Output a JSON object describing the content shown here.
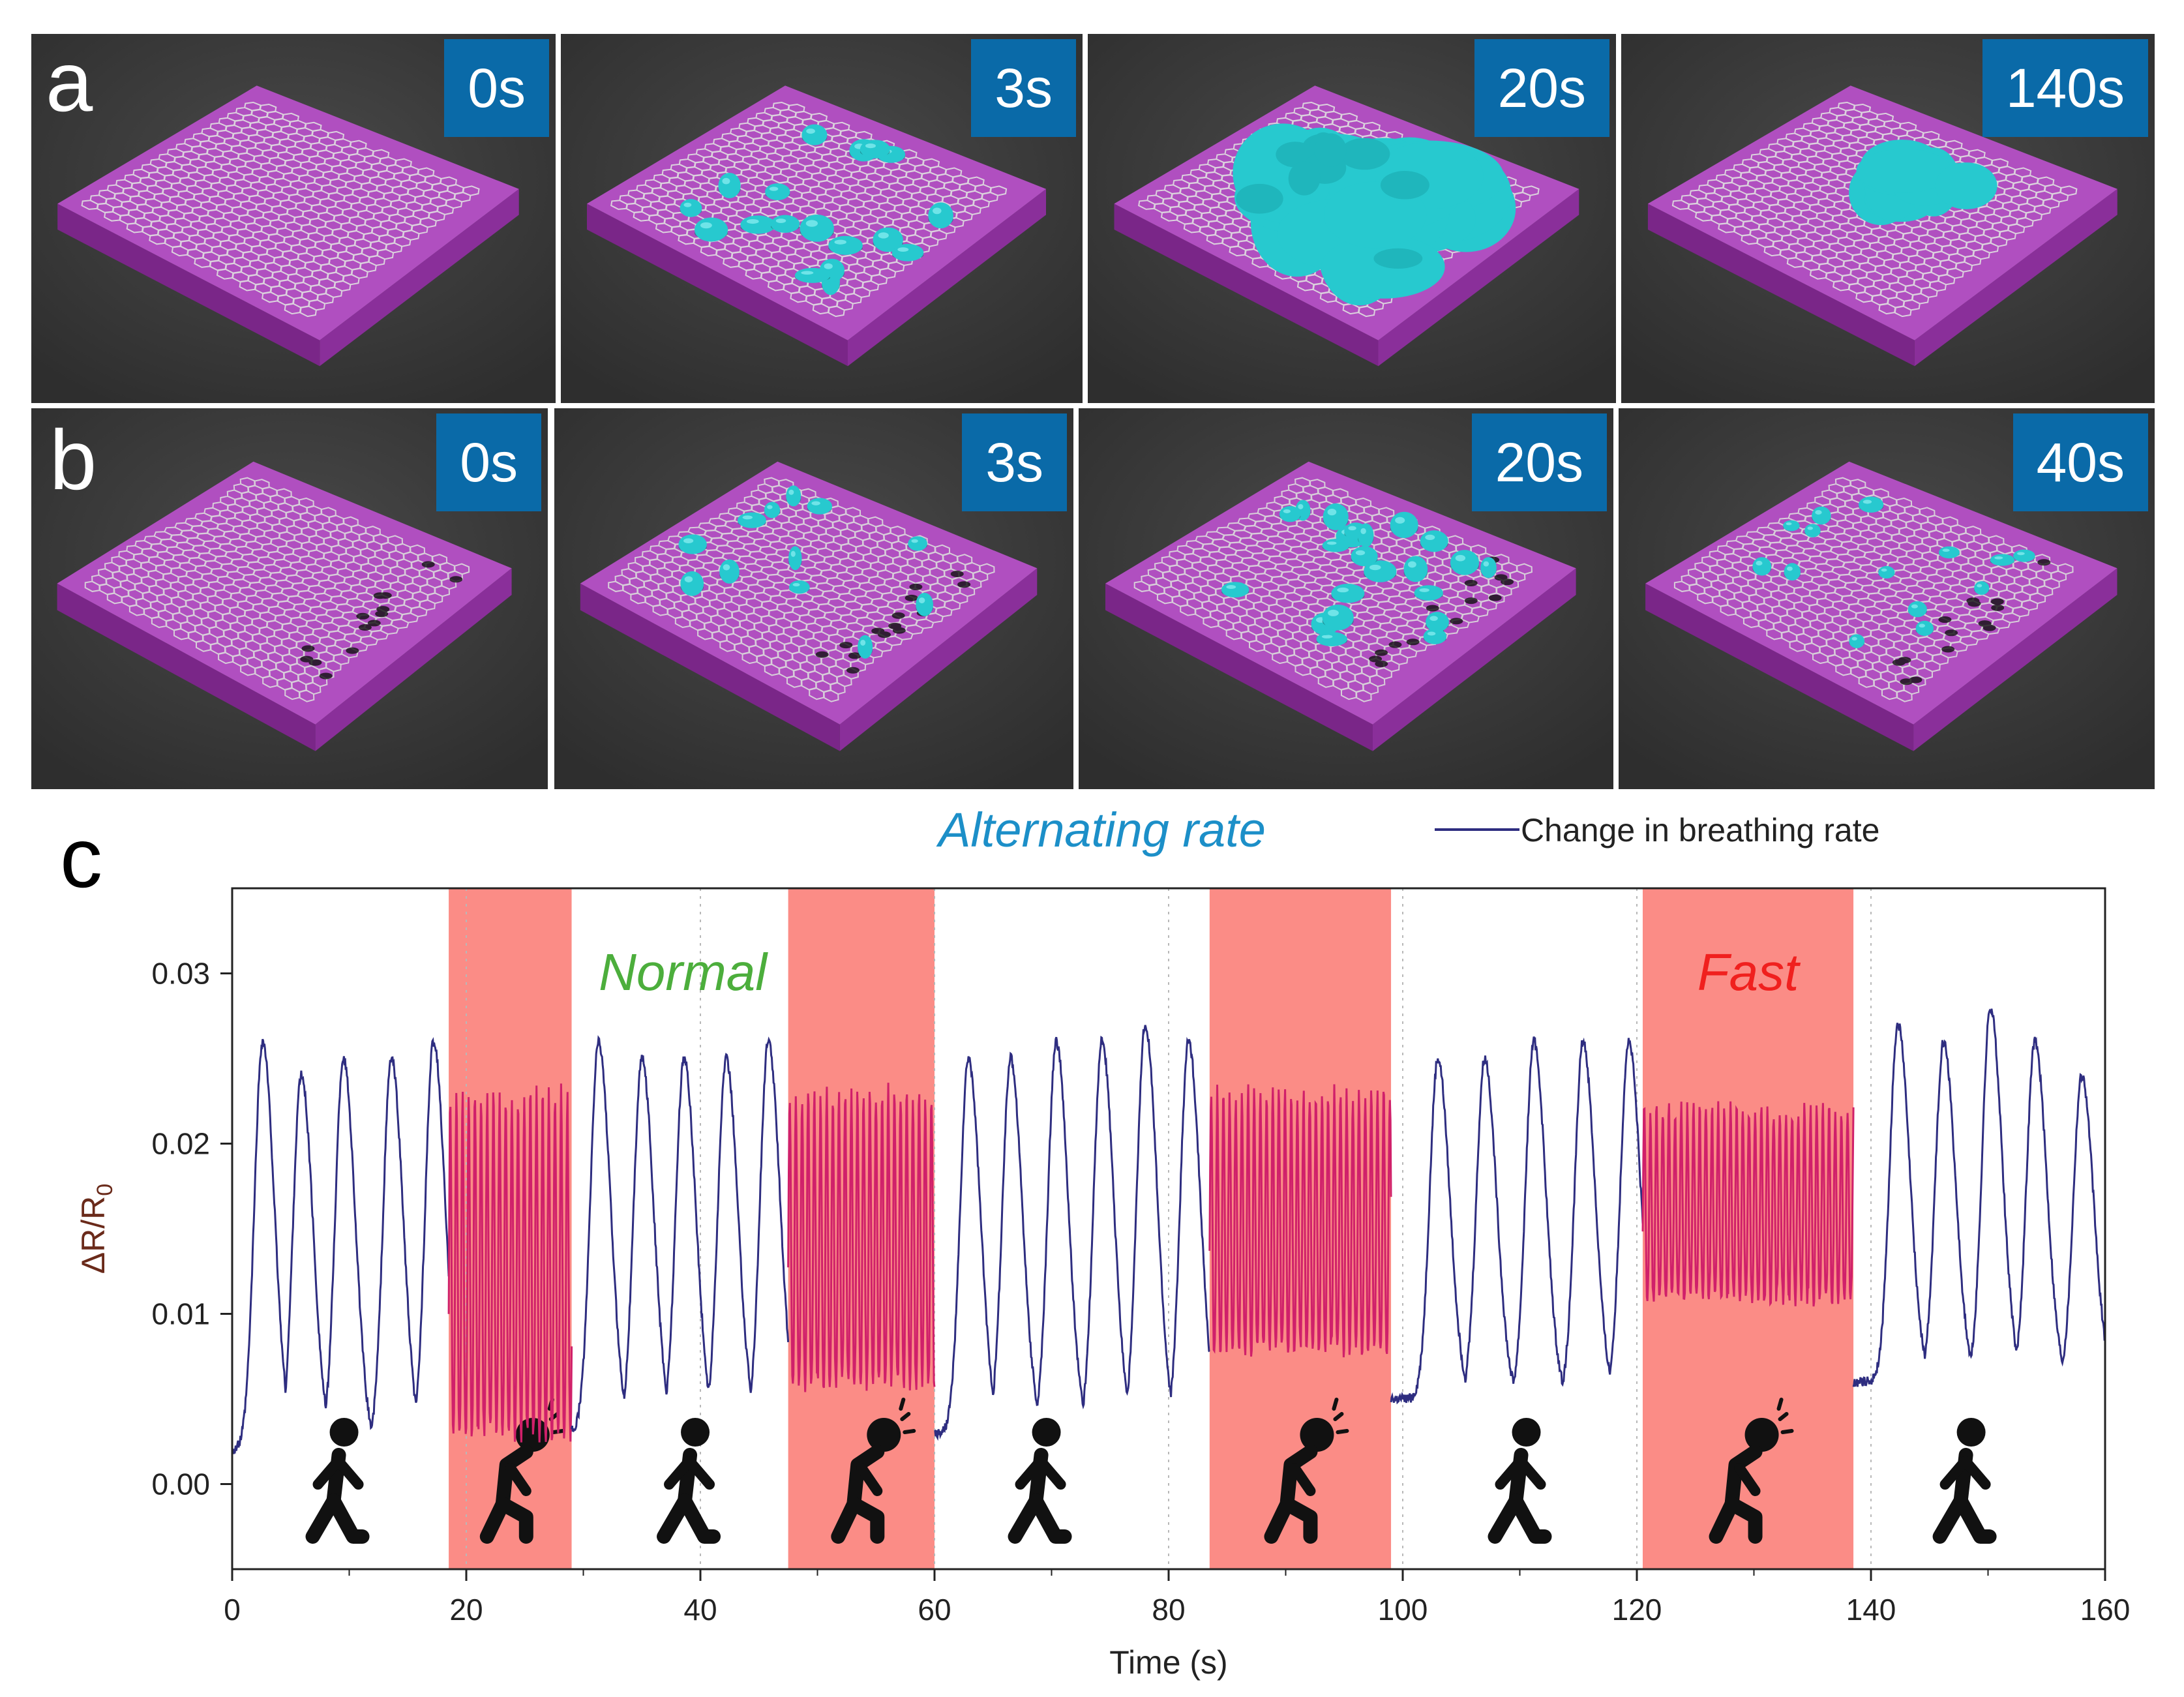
{
  "panel_labels": {
    "a": "a",
    "b": "b",
    "c": "c"
  },
  "row_a": {
    "times": [
      "0s",
      "3s",
      "20s",
      "140s"
    ]
  },
  "row_b": {
    "times": [
      "0s",
      "3s",
      "20s",
      "40s"
    ]
  },
  "colors": {
    "substrate_top": "#b04fc0",
    "substrate_side": "#8a2f9a",
    "substrate_front": "#7a2688",
    "droplet": "#27c9cf",
    "badge": "#0a6aa8",
    "frame_bg": "#3a3a3a",
    "line_normal": "#2e2d80",
    "line_fast": "#d0206a",
    "fast_band": "#fb8c86",
    "normal_label": "#4cae3c",
    "fast_label": "#f0201e",
    "title": "#1c8fc8"
  },
  "chart_data": {
    "type": "line",
    "title": "Alternating rate",
    "legend": "Change in breathing rate",
    "xlabel": "Time (s)",
    "ylabel": "ΔR/R0",
    "xlim": [
      0,
      160
    ],
    "ylim": [
      -0.005,
      0.035
    ],
    "xticks": [
      "0",
      "20",
      "40",
      "60",
      "80",
      "100",
      "120",
      "140",
      "160"
    ],
    "yticks": [
      "0.00",
      "0.01",
      "0.02",
      "0.03"
    ],
    "ytick_values": [
      0.0,
      0.01,
      0.02,
      0.03
    ],
    "xtick_values": [
      0,
      20,
      40,
      60,
      80,
      100,
      120,
      140,
      160
    ],
    "annotations": {
      "normal": "Normal",
      "fast": "Fast"
    },
    "segments": [
      {
        "state": "normal",
        "start": 0,
        "end": 18.5,
        "peaks": [
          2.6,
          5.9,
          9.5,
          13.6,
          17.2
        ],
        "peak_values": [
          0.026,
          0.024,
          0.025,
          0.025,
          0.026
        ],
        "trough": 0.002
      },
      {
        "state": "fast",
        "start": 18.5,
        "end": 29,
        "freq": 1.9,
        "peak": 0.023,
        "trough": 0.003
      },
      {
        "state": "normal",
        "start": 29,
        "end": 47.5,
        "peaks": [
          31.3,
          35,
          38.6,
          42.2,
          45.8
        ],
        "peak_values": [
          0.026,
          0.025,
          0.025,
          0.025,
          0.026
        ],
        "trough": 0.003
      },
      {
        "state": "fast",
        "start": 47.5,
        "end": 60,
        "freq": 1.9,
        "peak": 0.023,
        "trough": 0.006
      },
      {
        "state": "normal",
        "start": 60,
        "end": 83.5,
        "peaks": [
          62.9,
          66.5,
          70.4,
          74.3,
          78,
          81.7
        ],
        "peak_values": [
          0.025,
          0.025,
          0.026,
          0.026,
          0.027,
          0.026
        ],
        "trough": 0.003
      },
      {
        "state": "fast",
        "start": 83.5,
        "end": 99,
        "freq": 1.9,
        "peak": 0.023,
        "trough": 0.008
      },
      {
        "state": "normal",
        "start": 99,
        "end": 120.5,
        "peaks": [
          103,
          107,
          111.2,
          115.4,
          119.3
        ],
        "peak_values": [
          0.025,
          0.025,
          0.026,
          0.026,
          0.026
        ],
        "trough": 0.005
      },
      {
        "state": "fast",
        "start": 120.5,
        "end": 138.5,
        "freq": 1.9,
        "peak": 0.022,
        "trough": 0.011
      },
      {
        "state": "normal",
        "start": 138.5,
        "end": 160,
        "peaks": [
          142.3,
          146.2,
          150.2,
          154,
          158
        ],
        "peak_values": [
          0.027,
          0.026,
          0.028,
          0.026,
          0.024
        ],
        "trough": 0.006
      }
    ],
    "fast_bands": [
      [
        18.5,
        29
      ],
      [
        47.5,
        60
      ],
      [
        83.5,
        99
      ],
      [
        120.5,
        138.5
      ]
    ],
    "walker_positions": [
      9,
      39,
      69,
      110,
      148
    ],
    "runner_positions": [
      24,
      54,
      91,
      129
    ]
  }
}
